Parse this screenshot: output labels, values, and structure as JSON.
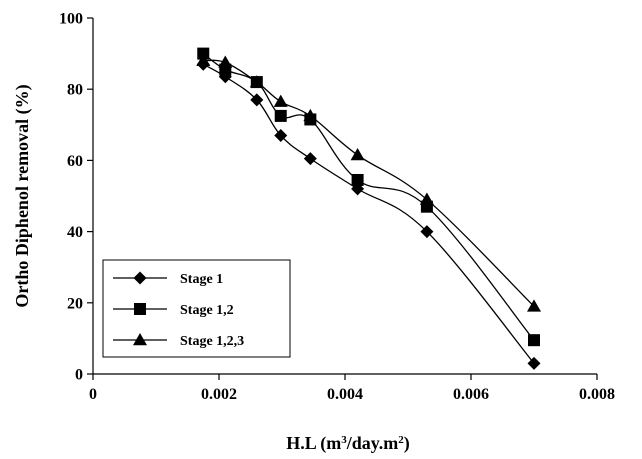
{
  "chart_data": {
    "type": "line",
    "xlabel": "H.L (m3/day.m2)",
    "xlabel_parts": {
      "base": "H.L (m",
      "sup1": "3",
      "mid": "/day.m",
      "sup2": "2",
      "end": ")"
    },
    "ylabel": "Ortho Diphenol removal (%)",
    "xlim": [
      0,
      0.008
    ],
    "ylim": [
      0,
      100
    ],
    "xticks": [
      0,
      0.002,
      0.004,
      0.006,
      0.008
    ],
    "xtick_labels": [
      "0",
      "0.002",
      "0.004",
      "0.006",
      "0.008"
    ],
    "yticks": [
      0,
      20,
      40,
      60,
      80,
      100
    ],
    "ytick_labels": [
      "0",
      "20",
      "40",
      "60",
      "80",
      "100"
    ],
    "grid": false,
    "legend_position": "bottom-left",
    "series": [
      {
        "name": "Stage 1",
        "marker": "diamond",
        "x": [
          0.00175,
          0.0021,
          0.0026,
          0.00298,
          0.00345,
          0.0042,
          0.0053,
          0.007
        ],
        "y": [
          87,
          83.5,
          77,
          67,
          60.5,
          52,
          40,
          3
        ]
      },
      {
        "name": "Stage 1,2",
        "marker": "square",
        "x": [
          0.00175,
          0.0021,
          0.0026,
          0.00298,
          0.00345,
          0.0042,
          0.0053,
          0.007
        ],
        "y": [
          90,
          85.5,
          82,
          72.5,
          71.5,
          54.5,
          47,
          9.5
        ]
      },
      {
        "name": "Stage 1,2,3",
        "marker": "triangle",
        "x": [
          0.00175,
          0.0021,
          0.0026,
          0.00298,
          0.00345,
          0.0042,
          0.0053,
          0.007
        ],
        "y": [
          88,
          87.5,
          82,
          76.5,
          72.5,
          61.5,
          49,
          19
        ]
      }
    ]
  }
}
